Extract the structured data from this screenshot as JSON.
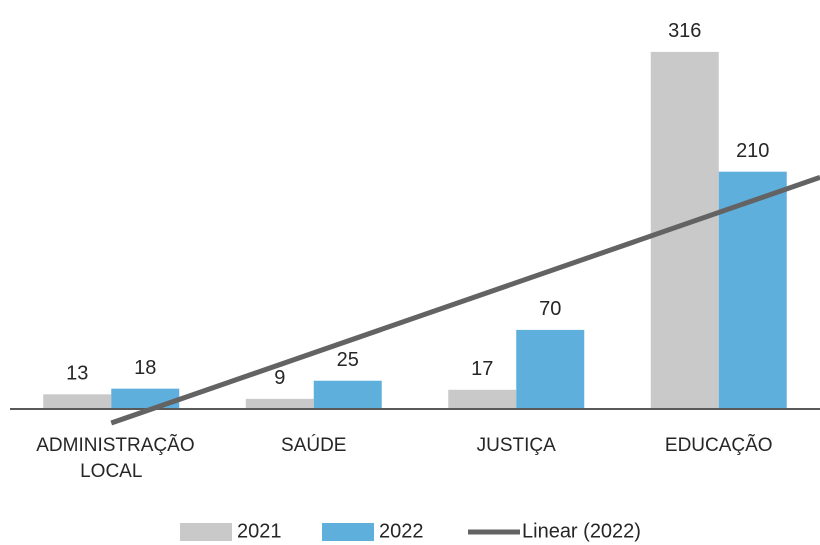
{
  "chart_data": {
    "type": "bar",
    "categories": [
      "ADMINISTRAÇÃO LOCAL",
      "SAÚDE",
      "JUSTIÇA",
      "EDUCAÇÃO"
    ],
    "series": [
      {
        "name": "2021",
        "color": "#c9c9c9",
        "values": [
          13,
          9,
          17,
          316
        ]
      },
      {
        "name": "2022",
        "color": "#5fafdc",
        "values": [
          18,
          25,
          70,
          210
        ]
      }
    ],
    "trendline": {
      "name": "Linear (2022)",
      "color": "#636363"
    },
    "ylim": [
      0,
      350
    ],
    "grid": false,
    "legend": "bottom"
  }
}
